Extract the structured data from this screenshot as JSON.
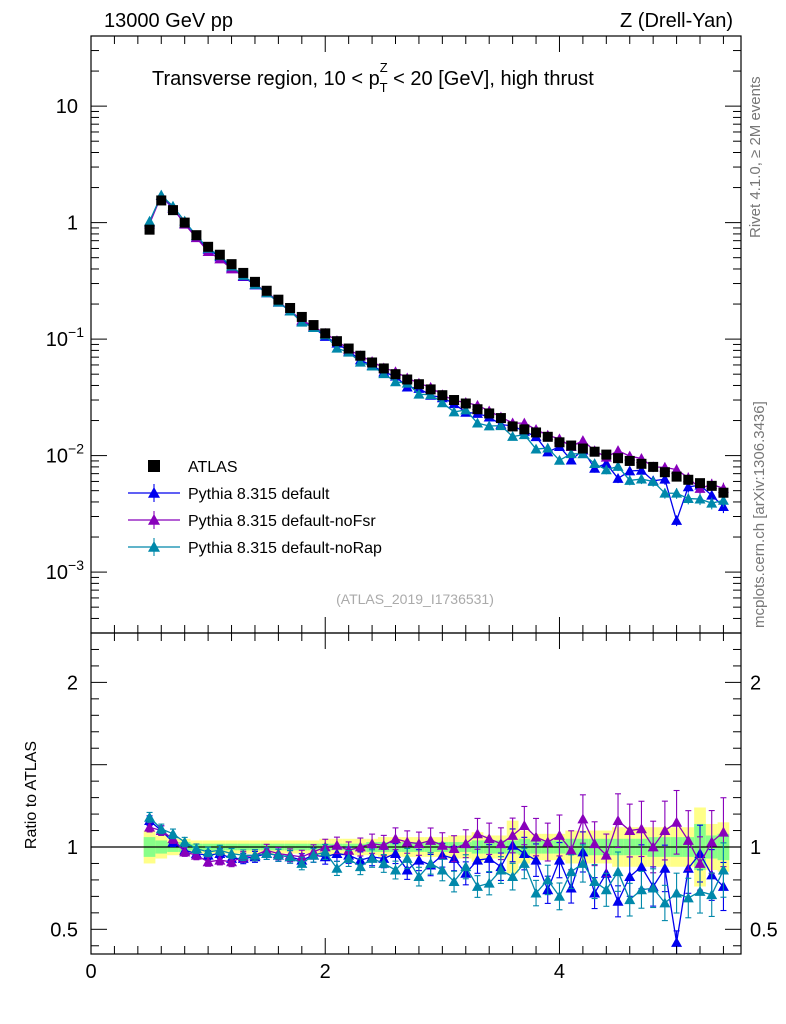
{
  "header": {
    "left": "13000 GeV pp",
    "right": "Z (Drell-Yan)"
  },
  "side_labels": {
    "rivet": "Rivet 4.1.0, ≥ 2M events",
    "mcplots": "mcplots.cern.ch [arXiv:1306.3436]"
  },
  "chart_data": {
    "type": "scatter",
    "title_parts": {
      "before": "Transverse region, 10 < p",
      "sup": "Z",
      "sub": "T",
      "after": " < 20 [GeV], high thrust"
    },
    "watermark": "(ATLAS_2019_I1736531)",
    "main": {
      "yscale": "log",
      "ylim": [
        0.0003,
        40
      ],
      "y_ticks": [
        {
          "value": 10,
          "label": "10"
        },
        {
          "value": 1,
          "label": "1"
        },
        {
          "value": 0.1,
          "label": "10",
          "exp": "−1"
        },
        {
          "value": 0.01,
          "label": "10",
          "exp": "−2"
        },
        {
          "value": 0.001,
          "label": "10",
          "exp": "−3"
        }
      ]
    },
    "ratio": {
      "ylabel": "Ratio to ATLAS",
      "ylim": [
        0.35,
        2.3
      ],
      "y_ticks": [
        {
          "value": 2,
          "label": "2"
        },
        {
          "value": 1,
          "label": "1"
        },
        {
          "value": 0.5,
          "label": "0.5"
        }
      ]
    },
    "xlim": [
      0,
      5.55
    ],
    "x_ticks": [
      {
        "value": 0,
        "label": "0"
      },
      {
        "value": 2,
        "label": "2"
      },
      {
        "value": 4,
        "label": "4"
      }
    ],
    "x": [
      0.5,
      0.6,
      0.7,
      0.8,
      0.9,
      1.0,
      1.1,
      1.2,
      1.3,
      1.4,
      1.5,
      1.6,
      1.7,
      1.8,
      1.9,
      2.0,
      2.1,
      2.2,
      2.3,
      2.4,
      2.5,
      2.6,
      2.7,
      2.8,
      2.9,
      3.0,
      3.1,
      3.2,
      3.3,
      3.4,
      3.5,
      3.6,
      3.7,
      3.8,
      3.9,
      4.0,
      4.1,
      4.2,
      4.3,
      4.4,
      4.5,
      4.6,
      4.7,
      4.8,
      4.9,
      5.0,
      5.1,
      5.2,
      5.3,
      5.4
    ],
    "band_green": [
      0.06,
      0.04,
      0.03,
      0.03,
      0.02,
      0.02,
      0.02,
      0.02,
      0.02,
      0.02,
      0.02,
      0.02,
      0.02,
      0.02,
      0.02,
      0.02,
      0.02,
      0.02,
      0.02,
      0.03,
      0.03,
      0.03,
      0.03,
      0.03,
      0.03,
      0.03,
      0.03,
      0.03,
      0.04,
      0.04,
      0.04,
      0.04,
      0.05,
      0.04,
      0.04,
      0.04,
      0.05,
      0.05,
      0.05,
      0.05,
      0.05,
      0.05,
      0.05,
      0.06,
      0.06,
      0.06,
      0.06,
      0.14,
      0.07,
      0.08
    ],
    "band_yellow": [
      0.1,
      0.07,
      0.05,
      0.05,
      0.04,
      0.04,
      0.04,
      0.04,
      0.04,
      0.04,
      0.04,
      0.04,
      0.04,
      0.04,
      0.04,
      0.05,
      0.05,
      0.05,
      0.05,
      0.05,
      0.06,
      0.06,
      0.06,
      0.06,
      0.06,
      0.06,
      0.07,
      0.07,
      0.09,
      0.07,
      0.07,
      0.16,
      0.1,
      0.08,
      0.08,
      0.08,
      0.1,
      0.1,
      0.1,
      0.1,
      0.12,
      0.12,
      0.12,
      0.12,
      0.12,
      0.12,
      0.12,
      0.24,
      0.14,
      0.15
    ],
    "series": [
      {
        "name": "ATLAS",
        "kind": "data",
        "color": "#000000",
        "values": [
          0.87,
          1.55,
          1.28,
          1.0,
          0.78,
          0.62,
          0.53,
          0.44,
          0.37,
          0.31,
          0.26,
          0.218,
          0.185,
          0.155,
          0.132,
          0.112,
          0.096,
          0.083,
          0.072,
          0.063,
          0.056,
          0.05,
          0.045,
          0.041,
          0.037,
          0.033,
          0.03,
          0.028,
          0.025,
          0.023,
          0.021,
          0.0178,
          0.0168,
          0.0158,
          0.0145,
          0.013,
          0.0122,
          0.0115,
          0.0108,
          0.0102,
          0.0095,
          0.009,
          0.0085,
          0.008,
          0.0072,
          0.0066,
          0.0062,
          0.0058,
          0.0055,
          0.0048
        ]
      },
      {
        "name": "Pythia 8.315 default",
        "kind": "mc",
        "color": "#0000ee",
        "ratio": [
          1.16,
          1.1,
          1.03,
          0.98,
          0.96,
          0.95,
          0.96,
          0.93,
          0.93,
          0.94,
          0.96,
          0.95,
          0.94,
          0.92,
          0.95,
          0.94,
          0.96,
          0.95,
          0.92,
          0.94,
          0.93,
          0.96,
          0.86,
          0.92,
          0.89,
          0.95,
          0.93,
          0.84,
          0.92,
          0.93,
          0.88,
          1.01,
          0.96,
          0.92,
          0.74,
          0.92,
          0.75,
          0.97,
          0.72,
          0.84,
          0.67,
          0.82,
          0.88,
          0.76,
          0.87,
          0.42,
          0.87,
          0.96,
          0.83,
          0.76
        ]
      },
      {
        "name": "Pythia 8.315 default-noFsr",
        "kind": "mc",
        "color": "#8800bb",
        "ratio": [
          1.12,
          1.1,
          1.05,
          0.97,
          0.95,
          0.91,
          0.92,
          0.91,
          0.94,
          0.95,
          0.98,
          0.96,
          0.95,
          0.94,
          0.97,
          1.0,
          1.01,
          0.98,
          1.0,
          1.02,
          1.01,
          1.05,
          1.03,
          1.02,
          1.04,
          1.01,
          0.99,
          1.02,
          1.08,
          1.05,
          1.02,
          1.07,
          1.13,
          1.06,
          1.03,
          1.07,
          0.98,
          1.17,
          1.02,
          0.95,
          1.16,
          1.1,
          1.11,
          1.0,
          1.1,
          1.15,
          1.04,
          0.9,
          1.03,
          1.09
        ]
      },
      {
        "name": "Pythia 8.315 default-noRap",
        "kind": "mc",
        "color": "#0088aa",
        "ratio": [
          1.18,
          1.11,
          1.08,
          1.03,
          0.99,
          0.97,
          0.98,
          0.96,
          0.95,
          0.95,
          0.96,
          0.95,
          0.94,
          0.9,
          0.95,
          0.97,
          0.87,
          0.93,
          0.88,
          0.93,
          0.9,
          0.86,
          0.93,
          0.82,
          0.9,
          0.86,
          0.79,
          0.88,
          0.76,
          0.78,
          0.86,
          0.82,
          0.9,
          0.72,
          0.8,
          0.7,
          0.85,
          0.9,
          0.79,
          0.74,
          0.85,
          0.68,
          0.74,
          0.75,
          0.66,
          0.72,
          0.69,
          0.73,
          0.71,
          0.86
        ]
      }
    ]
  }
}
